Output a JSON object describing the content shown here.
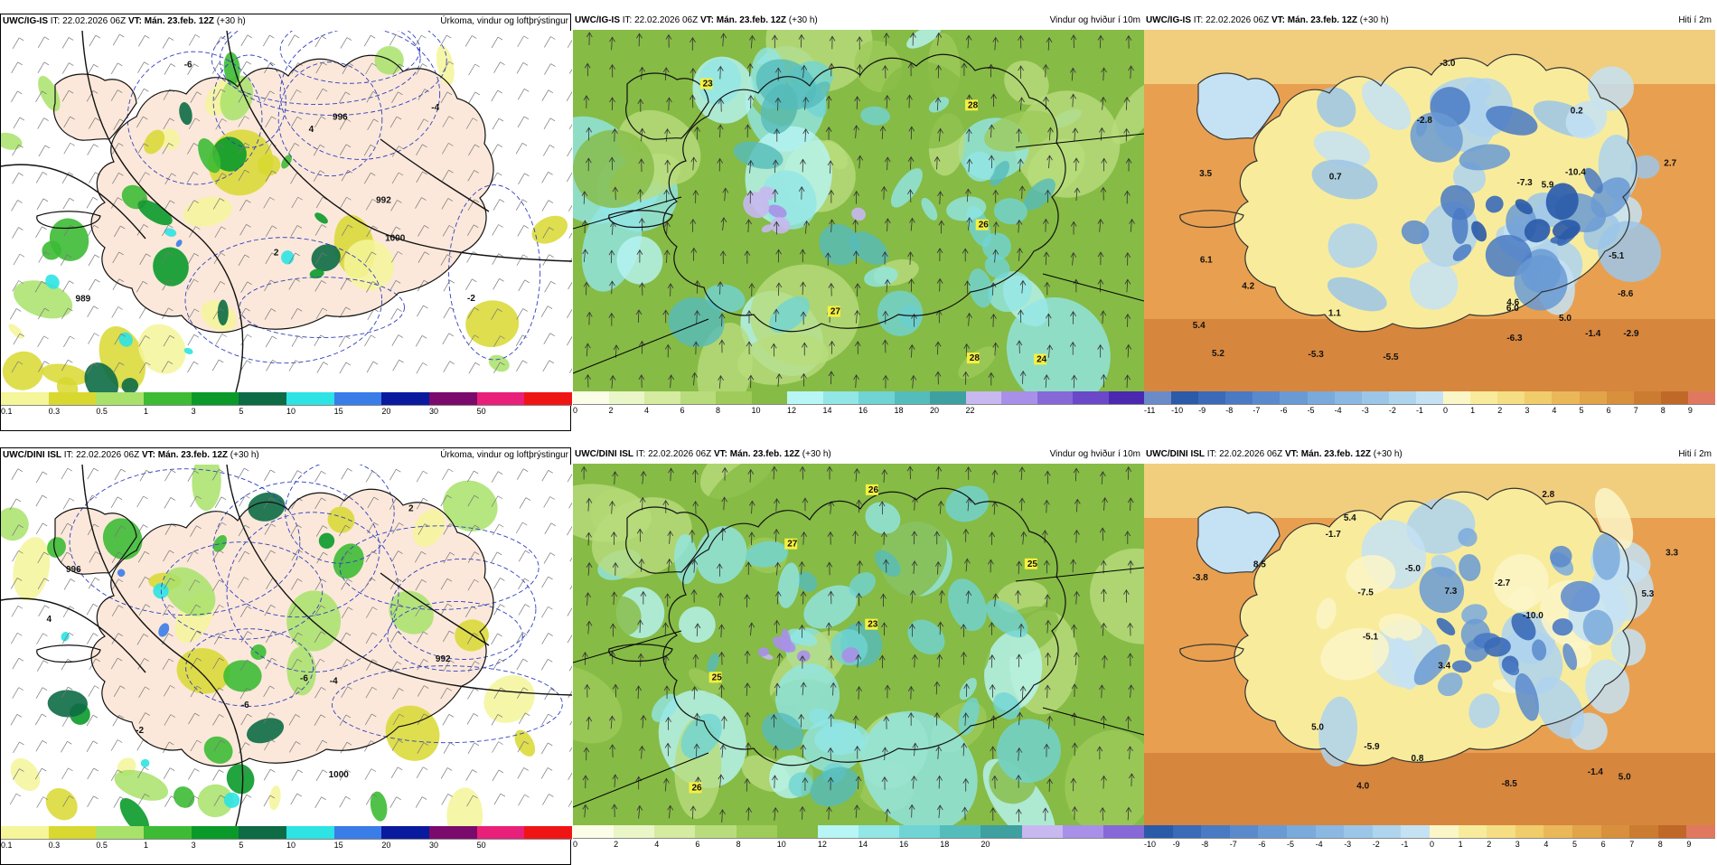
{
  "panels": [
    {
      "id": "p1",
      "model": "UWC/IG-IS",
      "it_label": "IT:",
      "it_value": "22.02.2026 06Z",
      "vt_label": "VT:",
      "vt_value": "Mán. 23.feb. 12Z",
      "lead": "(+30 h)",
      "field_title": "Úrkoma, vindur og loftþrýstingur",
      "kind": "precip",
      "colorbar": {
        "ticks": [
          "0.1",
          "0.3",
          "0.5",
          "1",
          "3",
          "5",
          "10",
          "15",
          "20",
          "30",
          "50"
        ],
        "colors": [
          "#f5f59a",
          "#d8d830",
          "#a8e26a",
          "#3dbb35",
          "#0a9a2a",
          "#0d6b45",
          "#2de3e3",
          "#3a7ce8",
          "#0a1a9e",
          "#7a0a6b",
          "#e8207a",
          "#f01515"
        ]
      },
      "map_labels": [
        "989",
        "1000",
        "996",
        "992",
        "-2",
        "-4",
        "-6",
        "2",
        "4"
      ]
    },
    {
      "id": "p2",
      "model": "UWC/IG-IS",
      "it_label": "IT:",
      "it_value": "22.02.2026 06Z",
      "vt_label": "VT:",
      "vt_value": "Mán. 23.feb. 12Z",
      "lead": "(+30 h)",
      "field_title": "Vindur og hviður í 10m",
      "kind": "wind",
      "colorbar": {
        "ticks": [
          "0",
          "2",
          "4",
          "6",
          "8",
          "10",
          "12",
          "14",
          "16",
          "18",
          "20",
          "22"
        ],
        "colors": [
          "#fbfde8",
          "#eaf5c8",
          "#d4eba0",
          "#b8dc7c",
          "#9ecb5a",
          "#86bb45",
          "#b8f5f5",
          "#92e6e6",
          "#70d4d4",
          "#55bcbc",
          "#3ea0a0",
          "#c8b8f0",
          "#a890e8",
          "#8668d8",
          "#6a48c8",
          "#4a28b0"
        ]
      },
      "map_labels": [
        "23",
        "24",
        "26",
        "28",
        "27",
        "28"
      ]
    },
    {
      "id": "p3",
      "model": "UWC/IG-IS",
      "it_label": "IT:",
      "it_value": "22.02.2026 06Z",
      "vt_label": "VT:",
      "vt_value": "Mán. 23.feb. 12Z",
      "lead": "(+30 h)",
      "field_title": "Hiti í 2m",
      "kind": "temp",
      "colorbar": {
        "ticks": [
          "-11",
          "-10",
          "-9",
          "-8",
          "-7",
          "-6",
          "-5",
          "-4",
          "-3",
          "-2",
          "-1",
          "0",
          "1",
          "2",
          "3",
          "4",
          "5",
          "6",
          "7",
          "8",
          "9"
        ],
        "colors": [
          "#6a8ac8",
          "#2a5aa8",
          "#3a6ab8",
          "#4a7ac4",
          "#5a8acc",
          "#6a9ad4",
          "#7aaadc",
          "#8ab8e2",
          "#9cc6e8",
          "#aed4ee",
          "#c4e2f4",
          "#fbf6c8",
          "#f8ec9c",
          "#f5de84",
          "#f0cc6a",
          "#eab858",
          "#e2a448",
          "#d8903c",
          "#cc7c30",
          "#c06828",
          "#e07860"
        ]
      },
      "map_labels": [
        "0.7",
        "3.5",
        "-2.9",
        "5.0",
        "5.4",
        "4.6",
        "4.2",
        "-6.3",
        "-3.0",
        "-7.3",
        "1.1",
        "-1.4",
        "0.2",
        "-5.3",
        "-8.6",
        "-10.4",
        "-5.1",
        "5.2",
        "2.7",
        "-2.8",
        "6.0",
        "5.9",
        "-5.5",
        "6.1"
      ]
    },
    {
      "id": "p4",
      "model": "UWC/DINI ISL",
      "it_label": "IT:",
      "it_value": "22.02.2026 06Z",
      "vt_label": "VT:",
      "vt_value": "Mán. 23.feb. 12Z",
      "lead": "(+30 h)",
      "field_title": "Úrkoma, vindur og loftþrýstingur",
      "kind": "precip",
      "colorbar": {
        "ticks": [
          "0.1",
          "0.3",
          "0.5",
          "1",
          "3",
          "5",
          "10",
          "15",
          "20",
          "30",
          "50"
        ],
        "colors": [
          "#f5f59a",
          "#d8d830",
          "#a8e26a",
          "#3dbb35",
          "#0a9a2a",
          "#0d6b45",
          "#2de3e3",
          "#3a7ce8",
          "#0a1a9e",
          "#7a0a6b",
          "#e8207a",
          "#f01515"
        ]
      },
      "map_labels": [
        "-6",
        "-2",
        "996",
        "992",
        "1000",
        "-4",
        "-6",
        "2",
        "4"
      ]
    },
    {
      "id": "p5",
      "model": "UWC/DINI ISL",
      "it_label": "IT:",
      "it_value": "22.02.2026 06Z",
      "vt_label": "VT:",
      "vt_value": "Mán. 23.feb. 12Z",
      "lead": "(+30 h)",
      "field_title": "Vindur og hviður í 10m",
      "kind": "wind",
      "colorbar": {
        "ticks": [
          "0",
          "2",
          "4",
          "6",
          "8",
          "10",
          "12",
          "14",
          "16",
          "18",
          "20"
        ],
        "colors": [
          "#fbfde8",
          "#eaf5c8",
          "#d4eba0",
          "#b8dc7c",
          "#9ecb5a",
          "#86bb45",
          "#b8f5f5",
          "#92e6e6",
          "#70d4d4",
          "#55bcbc",
          "#3ea0a0",
          "#c8b8f0",
          "#a890e8",
          "#8668d8"
        ]
      },
      "map_labels": [
        "26",
        "27",
        "25",
        "25",
        "26",
        "23"
      ]
    },
    {
      "id": "p6",
      "model": "UWC/DINI ISL",
      "it_label": "IT:",
      "it_value": "22.02.2026 06Z",
      "vt_label": "VT:",
      "vt_value": "Mán. 23.feb. 12Z",
      "lead": "(+30 h)",
      "field_title": "Hiti í 2m",
      "kind": "temp",
      "colorbar": {
        "ticks": [
          "-10",
          "-9",
          "-8",
          "-7",
          "-6",
          "-5",
          "-4",
          "-3",
          "-2",
          "-1",
          "0",
          "1",
          "2",
          "3",
          "4",
          "5",
          "6",
          "7",
          "8",
          "9"
        ],
        "colors": [
          "#2a5aa8",
          "#3a6ab8",
          "#4a7ac4",
          "#5a8acc",
          "#6a9ad4",
          "#7aaadc",
          "#8ab8e2",
          "#9cc6e8",
          "#aed4ee",
          "#c4e2f4",
          "#fbf6c8",
          "#f8ec9c",
          "#f5de84",
          "#f0cc6a",
          "#eab858",
          "#e2a448",
          "#d8903c",
          "#cc7c30",
          "#c06828",
          "#e07860"
        ]
      },
      "map_labels": [
        "-2.7",
        "3.4",
        "4.0",
        "5.0",
        "2.8",
        "-5.0",
        "-7.5",
        "5.3",
        "3.3",
        "-5.9",
        "0.8",
        "-1.7",
        "5.0",
        "-8.5",
        "-10.0",
        "-5.1",
        "-1.4",
        "7.3",
        "-3.8",
        "5.4",
        "8.5"
      ]
    }
  ]
}
